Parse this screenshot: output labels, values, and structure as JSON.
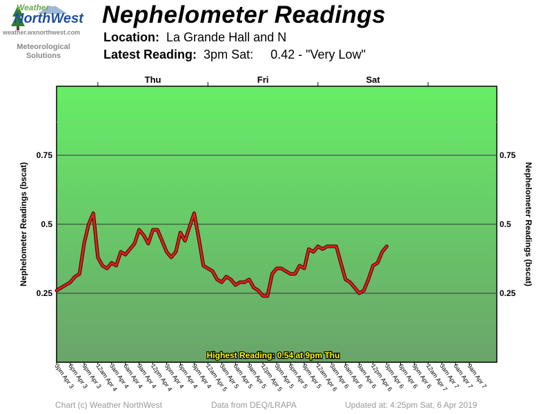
{
  "logo": {
    "word1": "Weather",
    "word2": "NorthWest",
    "url": "weather.wxnorthwest.com",
    "tagline1": "Meteorological",
    "tagline2": "Solutions"
  },
  "header": {
    "title": "Nephelometer Readings",
    "location_label": "Location:",
    "location_value": "La Grande Hall and N",
    "latest_label": "Latest Reading:",
    "latest_time": "3pm Sat:",
    "latest_value": "0.42 - \"Very Low\""
  },
  "colors": {
    "line": "#e0201c",
    "line_outline": "#3a0000",
    "band_top": "#66ee66",
    "band_bottom": "#6aa46a",
    "highest_text": "#ffff00"
  },
  "chart_data": {
    "type": "line",
    "ylabel": "Nephelometer Readings (bscat)",
    "ylim": [
      0,
      1
    ],
    "yticks": [
      0.25,
      0.5,
      0.75
    ],
    "ytick_labels": [
      "0.25",
      "0.5",
      "0.75"
    ],
    "grid": true,
    "day_labels": [
      {
        "label": "Thu",
        "x": "Thu Apr 4"
      },
      {
        "label": "Fri",
        "x": "Fri Apr 5"
      },
      {
        "label": "Sat",
        "x": "Sat Apr 6"
      }
    ],
    "day_boundaries": [
      "12am Apr 4",
      "12am Apr 5",
      "12am Apr 6",
      "12am Apr 7"
    ],
    "x_tick_labels": [
      "3pm Apr 3",
      "6pm Apr 3",
      "9pm Apr 3",
      "12am Apr 4",
      "3am Apr 4",
      "6am Apr 4",
      "9am Apr 4",
      "12pm Apr 4",
      "3pm Apr 4",
      "6pm Apr 4",
      "9pm Apr 4",
      "12am Apr 5",
      "3am Apr 5",
      "6am Apr 5",
      "9am Apr 5",
      "12pm Apr 5",
      "3pm Apr 5",
      "6pm Apr 5",
      "9pm Apr 5",
      "12am Apr 6",
      "3am Apr 6",
      "6am Apr 6",
      "9am Apr 6",
      "12pm Apr 6",
      "3pm Apr 6",
      "6pm Apr 6",
      "9pm Apr 6",
      "12am Apr 7",
      "3am Apr 7",
      "6am Apr 7",
      "9am Apr 7"
    ],
    "series": [
      {
        "x_start": "3pm Apr 3",
        "x_step": "1 hour",
        "values": [
          0.26,
          0.27,
          0.28,
          0.29,
          0.31,
          0.32,
          0.43,
          0.5,
          0.54,
          0.38,
          0.35,
          0.34,
          0.36,
          0.35,
          0.4,
          0.39,
          0.41,
          0.43,
          0.48,
          0.46,
          0.43,
          0.48,
          0.48,
          0.44,
          0.4,
          0.38,
          0.4,
          0.47,
          0.44,
          0.49,
          0.54,
          0.45,
          0.35,
          0.34,
          0.33,
          0.3,
          0.29,
          0.31,
          0.3,
          0.28,
          0.29,
          0.29,
          0.3,
          0.27,
          0.26,
          0.24,
          0.24,
          0.32,
          0.34,
          0.34,
          0.33,
          0.32,
          0.32,
          0.35,
          0.34,
          0.41,
          0.4,
          0.42,
          0.41,
          0.42,
          0.42,
          0.42,
          0.36,
          0.3,
          0.29,
          0.27,
          0.25,
          0.26,
          0.3,
          0.35,
          0.36,
          0.4,
          0.42
        ]
      }
    ],
    "highest_reading": "Highest Reading: 0.54 at 9pm Thu"
  },
  "footer": {
    "copyright": "Chart (c) Weather NorthWest",
    "source": "Data from DEQ/LRAPA",
    "updated": "Updated at: 4:25pm Sat, 6 Apr 2019"
  }
}
